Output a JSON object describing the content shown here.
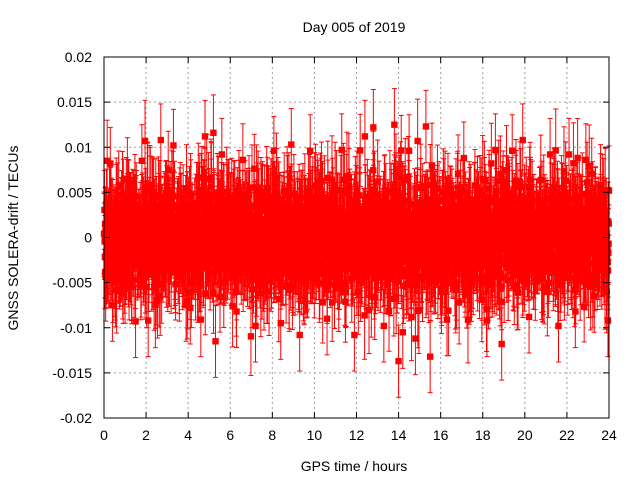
{
  "chart_data": {
    "type": "scatter",
    "title": "Day 005 of 2019",
    "xlabel": "GPS time / hours",
    "ylabel": "GNSS SOLERA-drift / TECUs",
    "xlim": [
      0,
      24
    ],
    "ylim": [
      -0.02,
      0.02
    ],
    "xticks": [
      "0",
      "2",
      "4",
      "6",
      "8",
      "10",
      "12",
      "14",
      "16",
      "18",
      "20",
      "22",
      "24"
    ],
    "yticks": [
      "-0.02",
      "-0.015",
      "-0.01",
      "-0.005",
      "0",
      "0.005",
      "0.01",
      "0.015",
      "0.02"
    ],
    "grid": true,
    "color": "#ff0000",
    "marker": "square",
    "error_bars": true,
    "series": [
      {
        "values_note_free": true,
        "points": [
          {
            "x": 0.05,
            "y": 0.0015,
            "err": 0.004
          },
          {
            "x": 0.1,
            "y": -0.0038,
            "err": 0.004
          },
          {
            "x": 0.15,
            "y": 0.0085,
            "err": 0.0045
          },
          {
            "x": 0.3,
            "y": 0.0082,
            "err": 0.004
          },
          {
            "x": 0.4,
            "y": -0.0075,
            "err": 0.004
          },
          {
            "x": 0.6,
            "y": 0.0041,
            "err": 0.004
          },
          {
            "x": 1.0,
            "y": -0.0055,
            "err": 0.004
          },
          {
            "x": 1.5,
            "y": -0.0093,
            "err": 0.004
          },
          {
            "x": 1.8,
            "y": 0.0085,
            "err": 0.004
          },
          {
            "x": 1.95,
            "y": 0.0107,
            "err": 0.0045
          },
          {
            "x": 2.1,
            "y": -0.0092,
            "err": 0.004
          },
          {
            "x": 2.7,
            "y": 0.0108,
            "err": 0.004
          },
          {
            "x": 3.3,
            "y": 0.0102,
            "err": 0.004
          },
          {
            "x": 3.9,
            "y": -0.0075,
            "err": 0.004
          },
          {
            "x": 4.1,
            "y": -0.0078,
            "err": 0.004
          },
          {
            "x": 4.8,
            "y": 0.0112,
            "err": 0.004
          },
          {
            "x": 5.2,
            "y": 0.0116,
            "err": 0.0042
          },
          {
            "x": 5.3,
            "y": -0.0115,
            "err": 0.004
          },
          {
            "x": 5.6,
            "y": 0.0092,
            "err": 0.004
          },
          {
            "x": 6.3,
            "y": -0.0082,
            "err": 0.004
          },
          {
            "x": 6.6,
            "y": 0.0086,
            "err": 0.004
          },
          {
            "x": 7.2,
            "y": -0.0098,
            "err": 0.004
          },
          {
            "x": 8.4,
            "y": -0.0095,
            "err": 0.004
          },
          {
            "x": 8.9,
            "y": 0.0103,
            "err": 0.004
          },
          {
            "x": 9.3,
            "y": -0.0108,
            "err": 0.004
          },
          {
            "x": 9.8,
            "y": 0.0096,
            "err": 0.004
          },
          {
            "x": 10.6,
            "y": -0.009,
            "err": 0.004
          },
          {
            "x": 11.3,
            "y": 0.0097,
            "err": 0.004
          },
          {
            "x": 11.9,
            "y": -0.0108,
            "err": 0.004
          },
          {
            "x": 12.4,
            "y": 0.0112,
            "err": 0.004
          },
          {
            "x": 12.8,
            "y": 0.0122,
            "err": 0.0042
          },
          {
            "x": 13.3,
            "y": -0.0098,
            "err": 0.004
          },
          {
            "x": 13.8,
            "y": 0.0125,
            "err": 0.004
          },
          {
            "x": 14.0,
            "y": -0.0137,
            "err": 0.004
          },
          {
            "x": 14.2,
            "y": -0.0105,
            "err": 0.004
          },
          {
            "x": 14.5,
            "y": 0.0096,
            "err": 0.004
          },
          {
            "x": 14.8,
            "y": -0.0112,
            "err": 0.004
          },
          {
            "x": 15.3,
            "y": 0.0123,
            "err": 0.004
          },
          {
            "x": 15.5,
            "y": -0.0132,
            "err": 0.004
          },
          {
            "x": 16.3,
            "y": -0.0091,
            "err": 0.004
          },
          {
            "x": 17.1,
            "y": 0.0088,
            "err": 0.004
          },
          {
            "x": 18.2,
            "y": -0.0092,
            "err": 0.004
          },
          {
            "x": 18.6,
            "y": 0.0097,
            "err": 0.004
          },
          {
            "x": 18.9,
            "y": -0.0118,
            "err": 0.004
          },
          {
            "x": 19.4,
            "y": 0.0096,
            "err": 0.004
          },
          {
            "x": 19.9,
            "y": 0.0108,
            "err": 0.004
          },
          {
            "x": 20.2,
            "y": -0.0088,
            "err": 0.004
          },
          {
            "x": 21.2,
            "y": 0.0092,
            "err": 0.004
          },
          {
            "x": 21.6,
            "y": -0.0098,
            "err": 0.004
          },
          {
            "x": 22.1,
            "y": 0.0092,
            "err": 0.004
          },
          {
            "x": 22.4,
            "y": -0.0082,
            "err": 0.004
          },
          {
            "x": 22.9,
            "y": 0.0086,
            "err": 0.004
          },
          {
            "x": 23.3,
            "y": -0.0065,
            "err": 0.004
          },
          {
            "x": 23.7,
            "y": 0.0052,
            "err": 0.004
          },
          {
            "x": 23.95,
            "y": -0.0092,
            "err": 0.004
          }
        ]
      }
    ]
  }
}
